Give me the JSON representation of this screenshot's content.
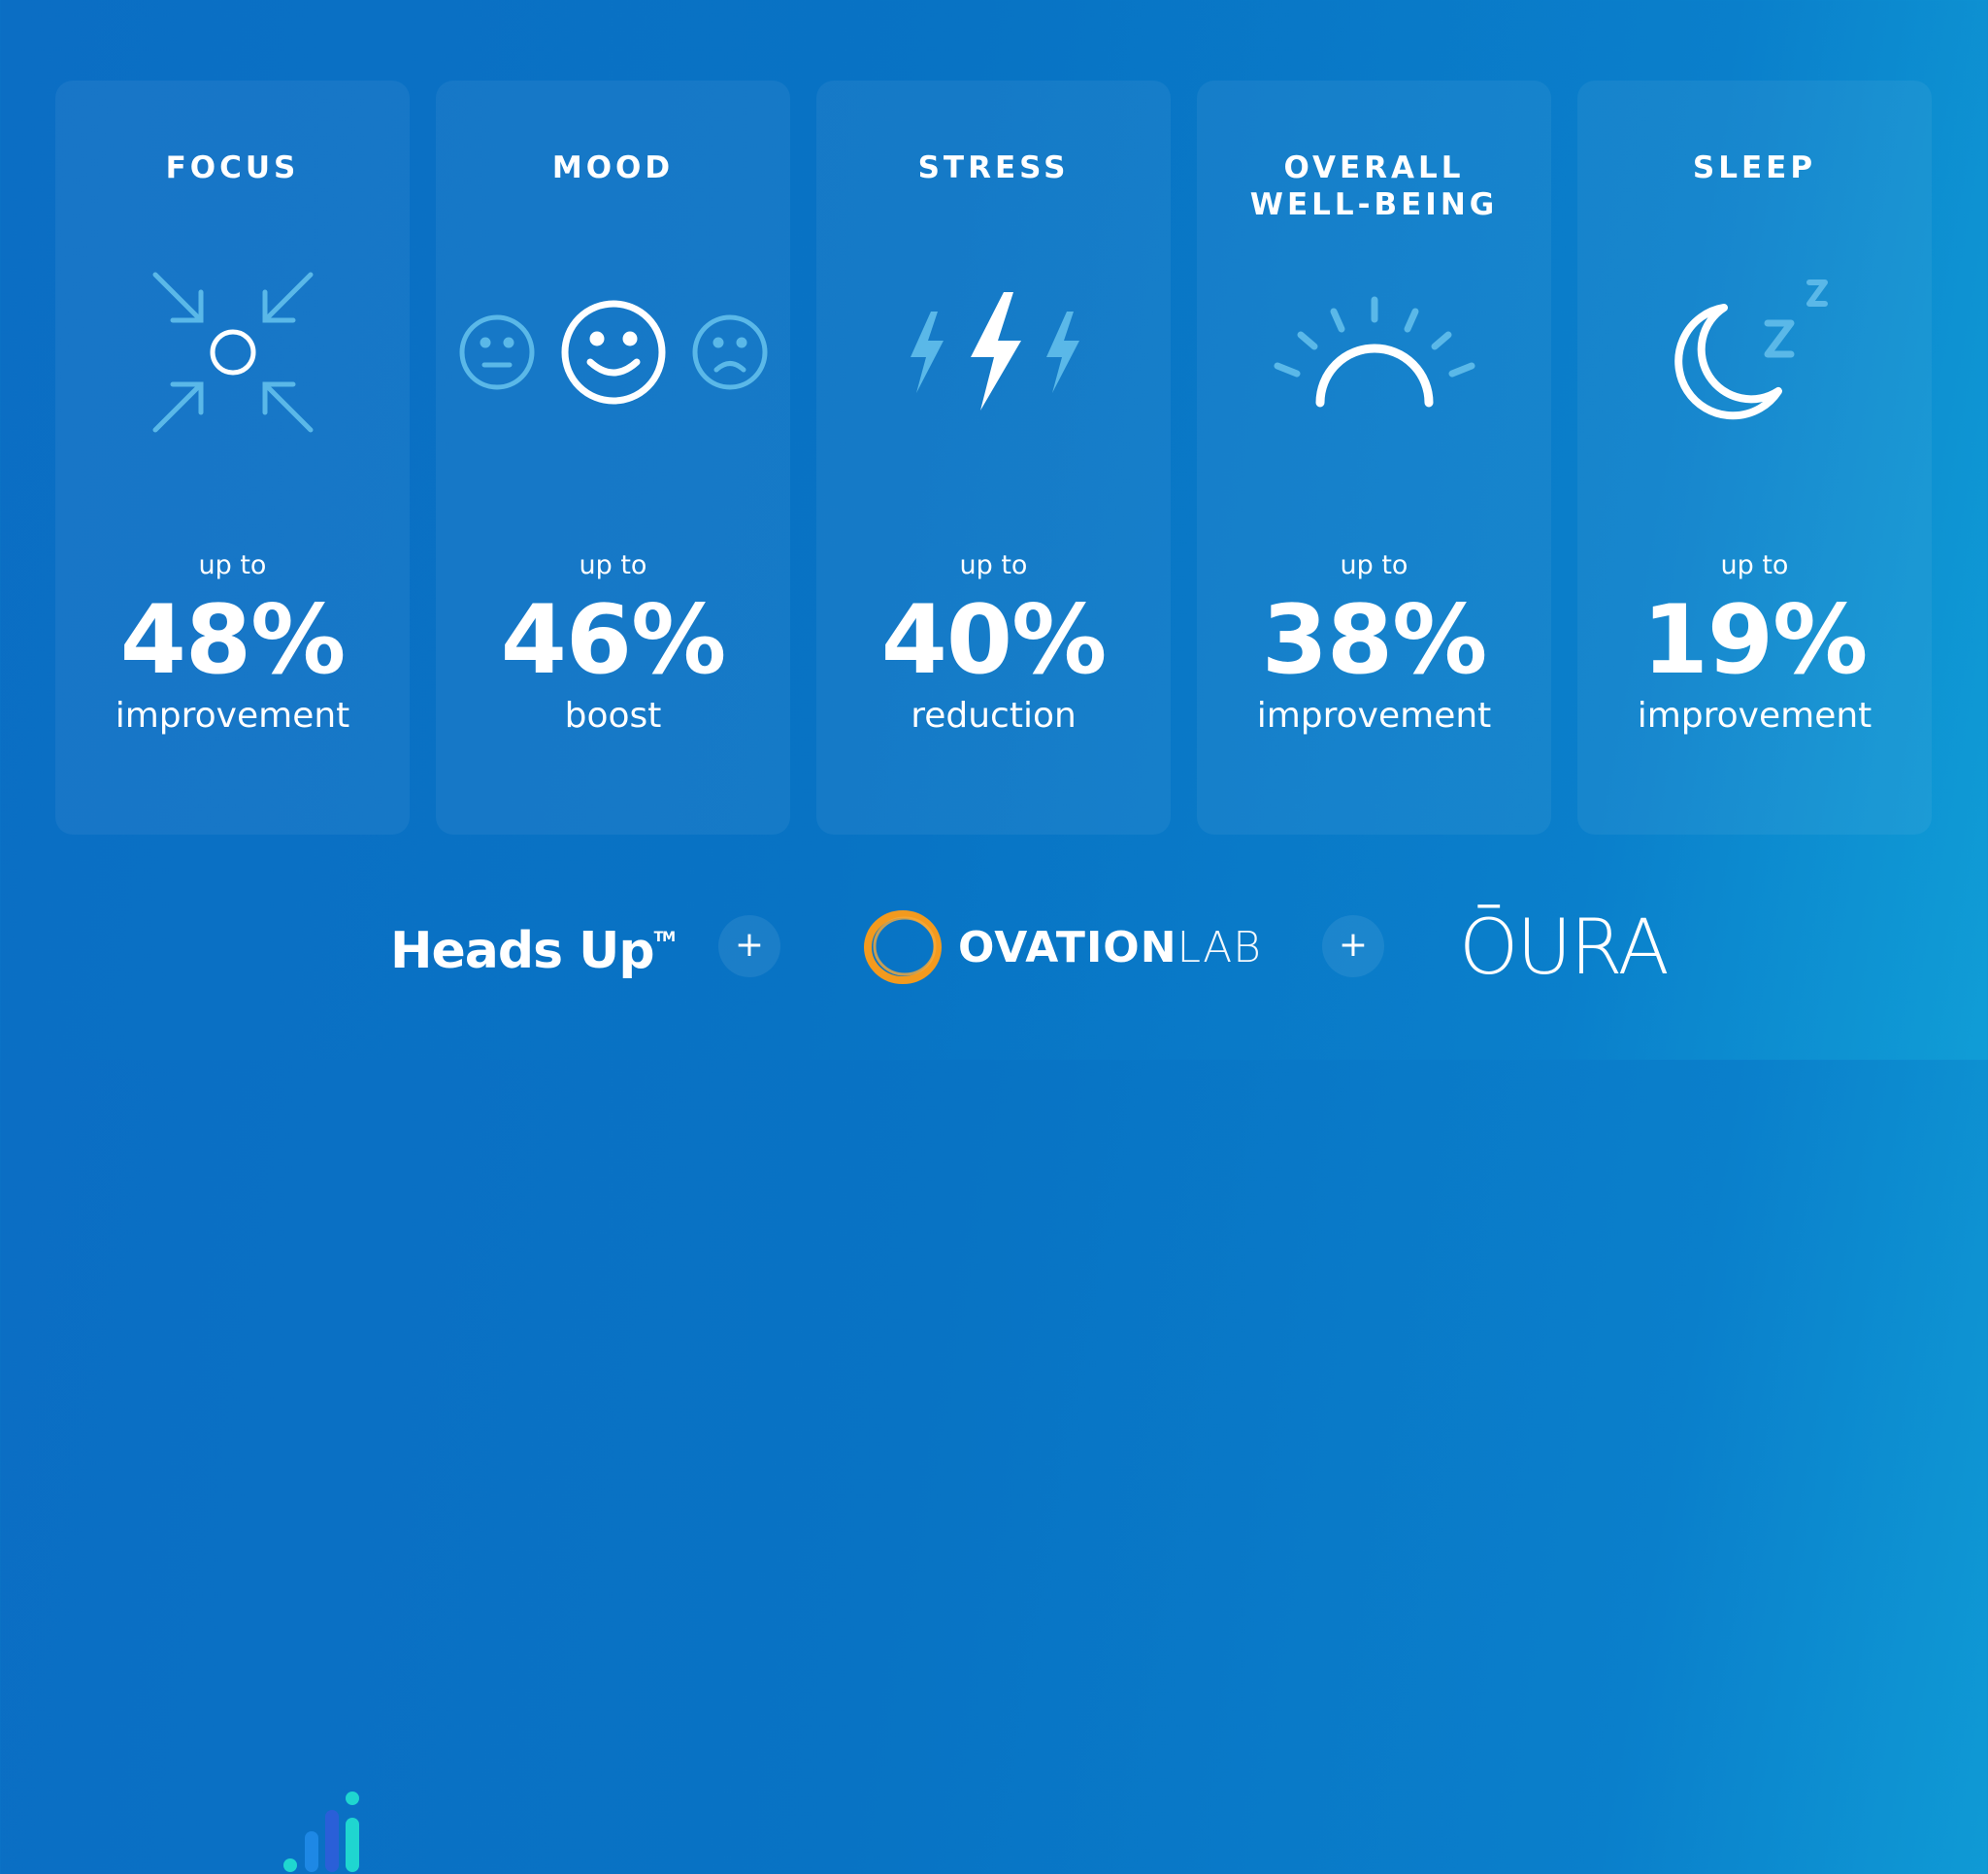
{
  "cards": [
    {
      "title": "FOCUS",
      "upto": "up to",
      "value": "48%",
      "desc": "improvement",
      "icon": "focus-arrows-icon"
    },
    {
      "title": "MOOD",
      "upto": "up to",
      "value": "46%",
      "desc": "boost",
      "icon": "smiley-faces-icon"
    },
    {
      "title": "STRESS",
      "upto": "up to",
      "value": "40%",
      "desc": "reduction",
      "icon": "lightning-bolts-icon"
    },
    {
      "title": "OVERALL\nWELL-BEING",
      "upto": "up to",
      "value": "38%",
      "desc": "improvement",
      "icon": "sunrise-icon"
    },
    {
      "title": "SLEEP",
      "upto": "up to",
      "value": "19%",
      "desc": "improvement",
      "icon": "moon-zzz-icon"
    }
  ],
  "logos": {
    "headsup": {
      "name": "Heads Up",
      "tm": "TM"
    },
    "plus": "+",
    "ovation": {
      "bold": "OVATION",
      "light": "LAB"
    },
    "oura": "ŌURA"
  },
  "colors": {
    "accent_light": "#5ab8e8",
    "orange": "#f39a1e",
    "teal": "#1fd6d0"
  }
}
